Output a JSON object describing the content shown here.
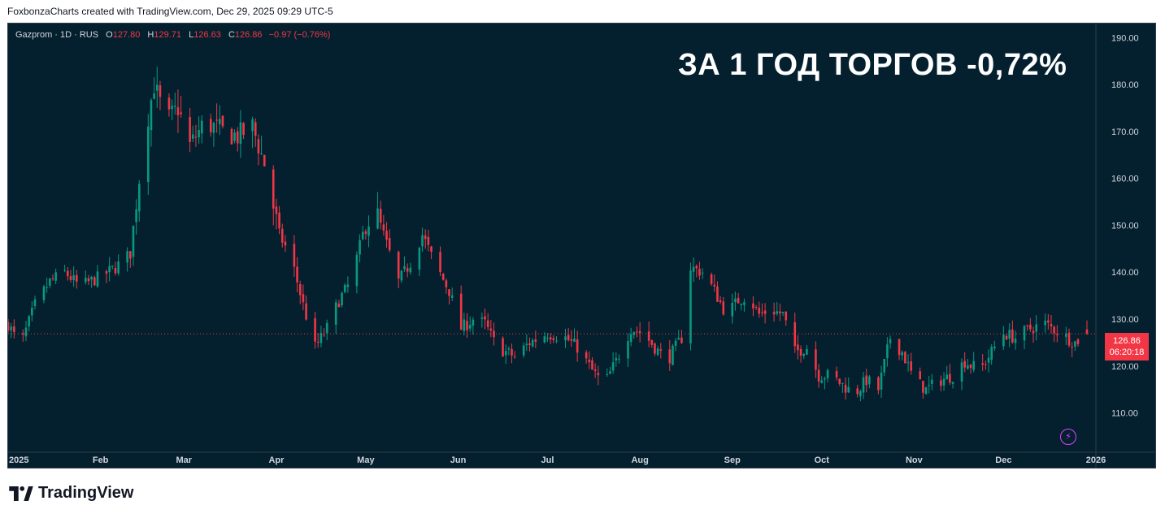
{
  "credit": "FoxbonzaCharts created with TradingView.com, Dec 29, 2025 09:29 UTC-5",
  "legend": {
    "symbol": "Gazprom · 1D · RUS",
    "o_label": "O",
    "o": "127.80",
    "h_label": "H",
    "h": "129.71",
    "l_label": "L",
    "l": "126.63",
    "c_label": "C",
    "c": "126.86",
    "change": "−0.97 (−0.76%)"
  },
  "headline": "ЗА 1 ГОД ТОРГОВ -0,72%",
  "price_tag": {
    "price": "126.86",
    "countdown": "06:20:18"
  },
  "brand": "TradingView",
  "colors": {
    "background": "#04202f",
    "up": "#089981",
    "down": "#f23645",
    "text": "#d1d4dc"
  },
  "chart_data": {
    "type": "candlestick",
    "ylim": [
      103,
      193
    ],
    "yticks": [
      "110.00",
      "120.00",
      "130.00",
      "140.00",
      "150.00",
      "160.00",
      "170.00",
      "180.00",
      "190.00"
    ],
    "xticks": [
      {
        "label": "2025",
        "x": "2025-01-01"
      },
      {
        "label": "Feb",
        "x": "2025-02-01"
      },
      {
        "label": "Mar",
        "x": "2025-03-01"
      },
      {
        "label": "Apr",
        "x": "2025-04-01"
      },
      {
        "label": "May",
        "x": "2025-05-01"
      },
      {
        "label": "Jun",
        "x": "2025-06-01"
      },
      {
        "label": "Jul",
        "x": "2025-07-01"
      },
      {
        "label": "Aug",
        "x": "2025-08-01"
      },
      {
        "label": "Sep",
        "x": "2025-09-01"
      },
      {
        "label": "Oct",
        "x": "2025-10-01"
      },
      {
        "label": "Nov",
        "x": "2025-11-01"
      },
      {
        "label": "Dec",
        "x": "2025-12-01"
      },
      {
        "label": "2026",
        "x": "2026-01-01"
      }
    ],
    "last_price": 126.86,
    "anchors": [
      [
        "2025-01-01",
        129
      ],
      [
        "2025-01-05",
        124
      ],
      [
        "2025-01-10",
        133
      ],
      [
        "2025-01-15",
        138
      ],
      [
        "2025-01-20",
        140
      ],
      [
        "2025-01-25",
        137
      ],
      [
        "2025-02-01",
        139
      ],
      [
        "2025-02-06",
        141
      ],
      [
        "2025-02-11",
        144
      ],
      [
        "2025-02-13",
        155
      ],
      [
        "2025-02-16",
        170
      ],
      [
        "2025-02-19",
        180
      ],
      [
        "2025-02-23",
        172
      ],
      [
        "2025-02-27",
        175
      ],
      [
        "2025-03-03",
        167
      ],
      [
        "2025-03-08",
        172
      ],
      [
        "2025-03-14",
        170
      ],
      [
        "2025-03-19",
        169
      ],
      [
        "2025-03-24",
        171
      ],
      [
        "2025-03-28",
        163
      ],
      [
        "2025-04-02",
        148
      ],
      [
        "2025-04-06",
        143
      ],
      [
        "2025-04-10",
        133
      ],
      [
        "2025-04-14",
        124
      ],
      [
        "2025-04-18",
        128
      ],
      [
        "2025-04-22",
        134
      ],
      [
        "2025-04-26",
        138
      ],
      [
        "2025-04-30",
        148
      ],
      [
        "2025-05-04",
        154
      ],
      [
        "2025-05-08",
        146
      ],
      [
        "2025-05-12",
        138
      ],
      [
        "2025-05-16",
        142
      ],
      [
        "2025-05-20",
        148
      ],
      [
        "2025-05-24",
        142
      ],
      [
        "2025-05-29",
        136
      ],
      [
        "2025-06-02",
        128
      ],
      [
        "2025-06-06",
        130
      ],
      [
        "2025-06-10",
        129
      ],
      [
        "2025-06-14",
        124
      ],
      [
        "2025-06-20",
        122
      ],
      [
        "2025-06-25",
        125
      ],
      [
        "2025-07-01",
        127
      ],
      [
        "2025-07-07",
        126
      ],
      [
        "2025-07-11",
        124
      ],
      [
        "2025-07-16",
        119
      ],
      [
        "2025-07-20",
        116
      ],
      [
        "2025-07-24",
        121
      ],
      [
        "2025-07-29",
        128
      ],
      [
        "2025-08-02",
        127
      ],
      [
        "2025-08-06",
        124
      ],
      [
        "2025-08-10",
        121
      ],
      [
        "2025-08-15",
        126
      ],
      [
        "2025-08-18",
        141
      ],
      [
        "2025-08-22",
        140
      ],
      [
        "2025-08-26",
        136
      ],
      [
        "2025-08-30",
        131
      ],
      [
        "2025-09-03",
        134
      ],
      [
        "2025-09-06",
        135
      ],
      [
        "2025-09-10",
        131
      ],
      [
        "2025-09-14",
        132
      ],
      [
        "2025-09-18",
        131
      ],
      [
        "2025-09-22",
        123
      ],
      [
        "2025-09-26",
        124
      ],
      [
        "2025-09-30",
        118
      ],
      [
        "2025-10-04",
        118
      ],
      [
        "2025-10-08",
        116
      ],
      [
        "2025-10-12",
        114
      ],
      [
        "2025-10-16",
        117
      ],
      [
        "2025-10-20",
        115
      ],
      [
        "2025-10-24",
        126
      ],
      [
        "2025-10-28",
        123
      ],
      [
        "2025-11-01",
        117
      ],
      [
        "2025-11-05",
        115
      ],
      [
        "2025-11-10",
        117
      ],
      [
        "2025-11-14",
        118
      ],
      [
        "2025-11-18",
        121
      ],
      [
        "2025-11-23",
        119
      ],
      [
        "2025-11-27",
        123
      ],
      [
        "2025-12-01",
        127
      ],
      [
        "2025-12-05",
        126
      ],
      [
        "2025-12-10",
        128
      ],
      [
        "2025-12-15",
        129
      ],
      [
        "2025-12-20",
        127
      ],
      [
        "2025-12-25",
        125
      ],
      [
        "2025-12-29",
        126.86
      ]
    ]
  }
}
